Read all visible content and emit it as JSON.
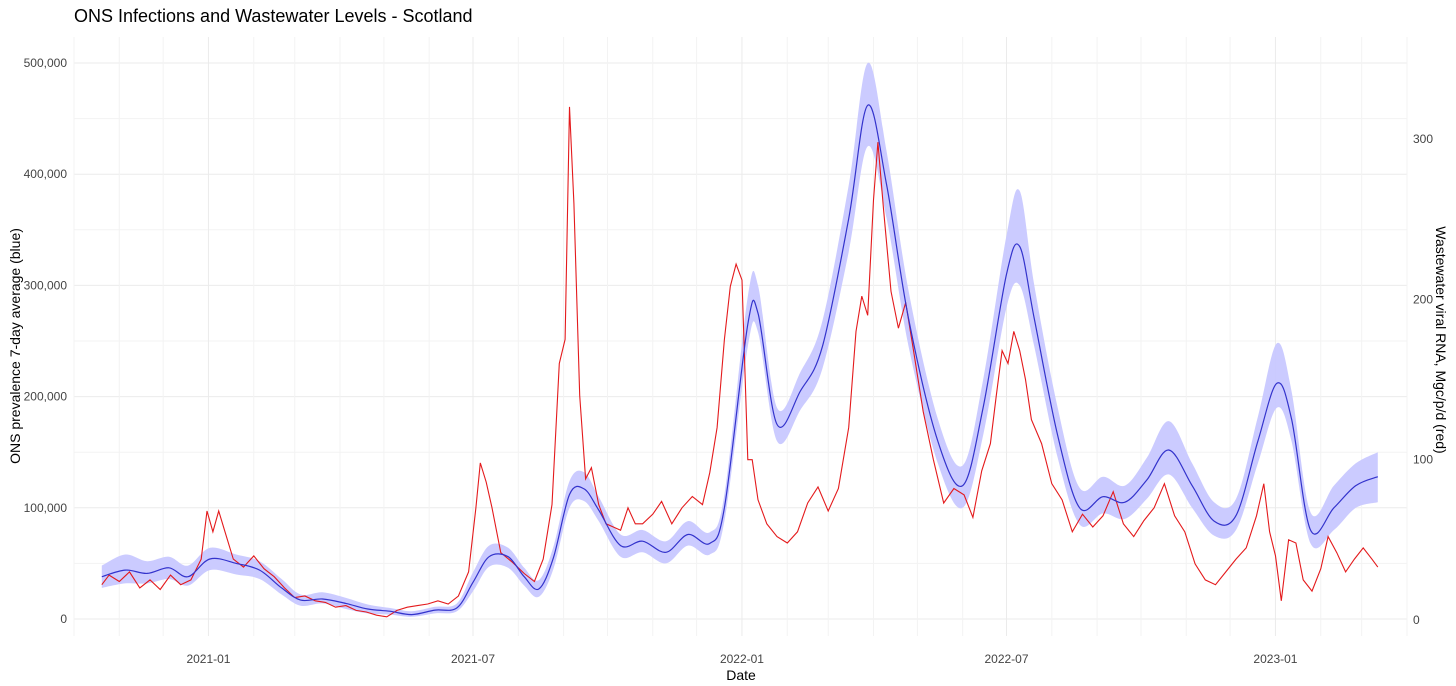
{
  "chart_data": {
    "type": "line",
    "title": "ONS Infections and Wastewater Levels - Scotland",
    "xlabel": "Date",
    "ylabel_left": "ONS prevalence 7-day average (blue)",
    "ylabel_right": "Wastewater viral RNA, Mgc/p/d (red)",
    "xlim": [
      "2020-10-01",
      "2023-04-01"
    ],
    "ylim_left": [
      0,
      500000
    ],
    "ylim_right": [
      0,
      340
    ],
    "x_ticks": [
      {
        "date": "2021-01-01",
        "label": "2021-01"
      },
      {
        "date": "2021-07-01",
        "label": "2021-07"
      },
      {
        "date": "2022-01-01",
        "label": "2022-01"
      },
      {
        "date": "2022-07-01",
        "label": "2022-07"
      },
      {
        "date": "2023-01-01",
        "label": "2023-01"
      }
    ],
    "x_minor_dates": [
      "2020-10-01",
      "2020-11-01",
      "2020-12-01",
      "2021-02-01",
      "2021-03-01",
      "2021-04-01",
      "2021-05-01",
      "2021-06-01",
      "2021-08-01",
      "2021-09-01",
      "2021-10-01",
      "2021-11-01",
      "2021-12-01",
      "2022-02-01",
      "2022-03-01",
      "2022-04-01",
      "2022-05-01",
      "2022-06-01",
      "2022-08-01",
      "2022-09-01",
      "2022-10-01",
      "2022-11-01",
      "2022-12-01",
      "2023-02-01",
      "2023-03-01",
      "2023-04-01"
    ],
    "y_left_ticks": [
      {
        "value": 0,
        "label": "0"
      },
      {
        "value": 100000,
        "label": "100,000"
      },
      {
        "value": 200000,
        "label": "200,000"
      },
      {
        "value": 300000,
        "label": "300,000"
      },
      {
        "value": 400000,
        "label": "400,000"
      },
      {
        "value": 500000,
        "label": "500,000"
      }
    ],
    "y_right_ticks": [
      {
        "value": 0,
        "label": "0"
      },
      {
        "value": 100,
        "label": "100"
      },
      {
        "value": 200,
        "label": "200"
      },
      {
        "value": 300,
        "label": "300"
      }
    ],
    "grid": true,
    "series": [
      {
        "axis": "left",
        "color": "#3333cc",
        "band_color": "#c8c8ff",
        "points": [
          [
            "2020-10-20",
            38000,
            28000,
            48000
          ],
          [
            "2020-11-05",
            44000,
            32000,
            58000
          ],
          [
            "2020-11-20",
            41000,
            32000,
            52000
          ],
          [
            "2020-12-05",
            46000,
            36000,
            56000
          ],
          [
            "2020-12-18",
            38000,
            30000,
            48000
          ],
          [
            "2021-01-02",
            54000,
            44000,
            64000
          ],
          [
            "2021-01-20",
            50000,
            40000,
            58000
          ],
          [
            "2021-02-05",
            44000,
            36000,
            52000
          ],
          [
            "2021-02-20",
            28000,
            22000,
            36000
          ],
          [
            "2021-03-05",
            17000,
            12000,
            22000
          ],
          [
            "2021-03-20",
            18000,
            14000,
            24000
          ],
          [
            "2021-04-05",
            14000,
            9000,
            19000
          ],
          [
            "2021-04-20",
            9000,
            5000,
            13000
          ],
          [
            "2021-05-05",
            7000,
            4000,
            10000
          ],
          [
            "2021-05-20",
            4000,
            2000,
            7000
          ],
          [
            "2021-06-05",
            8000,
            5000,
            11000
          ],
          [
            "2021-06-20",
            10000,
            7000,
            14000
          ],
          [
            "2021-07-01",
            33000,
            25000,
            42000
          ],
          [
            "2021-07-12",
            56000,
            47000,
            66000
          ],
          [
            "2021-07-25",
            56000,
            46000,
            64000
          ],
          [
            "2021-08-05",
            38000,
            30000,
            46000
          ],
          [
            "2021-08-15",
            27000,
            20000,
            35000
          ],
          [
            "2021-08-25",
            55000,
            45000,
            65000
          ],
          [
            "2021-09-05",
            112000,
            100000,
            124000
          ],
          [
            "2021-09-15",
            117000,
            106000,
            132000
          ],
          [
            "2021-09-25",
            98000,
            88000,
            110000
          ],
          [
            "2021-10-10",
            66000,
            56000,
            76000
          ],
          [
            "2021-10-25",
            70000,
            60000,
            80000
          ],
          [
            "2021-11-10",
            60000,
            50000,
            70000
          ],
          [
            "2021-11-25",
            76000,
            66000,
            88000
          ],
          [
            "2021-12-10",
            68000,
            58000,
            78000
          ],
          [
            "2021-12-20",
            100000,
            88000,
            112000
          ],
          [
            "2022-01-05",
            265000,
            245000,
            290000
          ],
          [
            "2022-01-12",
            275000,
            258000,
            300000
          ],
          [
            "2022-01-25",
            175000,
            160000,
            190000
          ],
          [
            "2022-02-10",
            205000,
            188000,
            222000
          ],
          [
            "2022-02-25",
            245000,
            225000,
            268000
          ],
          [
            "2022-03-15",
            360000,
            330000,
            390000
          ],
          [
            "2022-03-28",
            462000,
            425000,
            500000
          ],
          [
            "2022-04-10",
            390000,
            360000,
            420000
          ],
          [
            "2022-04-25",
            270000,
            245000,
            295000
          ],
          [
            "2022-05-15",
            160000,
            140000,
            180000
          ],
          [
            "2022-06-01",
            120000,
            100000,
            138000
          ],
          [
            "2022-06-15",
            190000,
            165000,
            215000
          ],
          [
            "2022-07-01",
            310000,
            280000,
            345000
          ],
          [
            "2022-07-10",
            335000,
            300000,
            385000
          ],
          [
            "2022-07-20",
            270000,
            245000,
            300000
          ],
          [
            "2022-08-05",
            165000,
            145000,
            190000
          ],
          [
            "2022-08-20",
            100000,
            85000,
            118000
          ],
          [
            "2022-09-05",
            110000,
            95000,
            128000
          ],
          [
            "2022-09-20",
            105000,
            90000,
            120000
          ],
          [
            "2022-10-05",
            125000,
            108000,
            145000
          ],
          [
            "2022-10-20",
            152000,
            130000,
            178000
          ],
          [
            "2022-11-05",
            120000,
            100000,
            140000
          ],
          [
            "2022-11-20",
            88000,
            75000,
            105000
          ],
          [
            "2022-12-05",
            93000,
            80000,
            108000
          ],
          [
            "2022-12-20",
            160000,
            140000,
            182000
          ],
          [
            "2023-01-02",
            212000,
            190000,
            248000
          ],
          [
            "2023-01-12",
            180000,
            160000,
            205000
          ],
          [
            "2023-01-25",
            80000,
            68000,
            96000
          ],
          [
            "2023-02-10",
            100000,
            80000,
            120000
          ],
          [
            "2023-02-25",
            120000,
            100000,
            140000
          ],
          [
            "2023-03-12",
            128000,
            105000,
            150000
          ]
        ]
      },
      {
        "axis": "right",
        "color": "#e41a1c",
        "points": [
          [
            "2020-10-20",
            22
          ],
          [
            "2020-10-25",
            28
          ],
          [
            "2020-11-01",
            24
          ],
          [
            "2020-11-08",
            30
          ],
          [
            "2020-11-15",
            20
          ],
          [
            "2020-11-22",
            25
          ],
          [
            "2020-11-29",
            19
          ],
          [
            "2020-12-06",
            28
          ],
          [
            "2020-12-13",
            22
          ],
          [
            "2020-12-20",
            25
          ],
          [
            "2020-12-27",
            38
          ],
          [
            "2020-12-31",
            68
          ],
          [
            "2021-01-04",
            55
          ],
          [
            "2021-01-08",
            68
          ],
          [
            "2021-01-12",
            56
          ],
          [
            "2021-01-18",
            38
          ],
          [
            "2021-01-25",
            33
          ],
          [
            "2021-02-01",
            40
          ],
          [
            "2021-02-08",
            32
          ],
          [
            "2021-02-15",
            27
          ],
          [
            "2021-02-22",
            20
          ],
          [
            "2021-03-01",
            14
          ],
          [
            "2021-03-08",
            15
          ],
          [
            "2021-03-15",
            12
          ],
          [
            "2021-03-22",
            11
          ],
          [
            "2021-03-29",
            8
          ],
          [
            "2021-04-05",
            9
          ],
          [
            "2021-04-12",
            6
          ],
          [
            "2021-04-19",
            5
          ],
          [
            "2021-04-26",
            3
          ],
          [
            "2021-05-03",
            2
          ],
          [
            "2021-05-10",
            6
          ],
          [
            "2021-05-17",
            8
          ],
          [
            "2021-05-24",
            9
          ],
          [
            "2021-05-31",
            10
          ],
          [
            "2021-06-07",
            12
          ],
          [
            "2021-06-14",
            10
          ],
          [
            "2021-06-21",
            15
          ],
          [
            "2021-06-28",
            30
          ],
          [
            "2021-07-03",
            70
          ],
          [
            "2021-07-06",
            98
          ],
          [
            "2021-07-10",
            86
          ],
          [
            "2021-07-14",
            70
          ],
          [
            "2021-07-20",
            42
          ],
          [
            "2021-07-28",
            36
          ],
          [
            "2021-08-05",
            29
          ],
          [
            "2021-08-12",
            24
          ],
          [
            "2021-08-18",
            38
          ],
          [
            "2021-08-24",
            72
          ],
          [
            "2021-08-29",
            160
          ],
          [
            "2021-09-02",
            175
          ],
          [
            "2021-09-05",
            320
          ],
          [
            "2021-09-08",
            260
          ],
          [
            "2021-09-12",
            140
          ],
          [
            "2021-09-16",
            88
          ],
          [
            "2021-09-20",
            95
          ],
          [
            "2021-09-25",
            72
          ],
          [
            "2021-09-30",
            60
          ],
          [
            "2021-10-05",
            58
          ],
          [
            "2021-10-10",
            56
          ],
          [
            "2021-10-15",
            70
          ],
          [
            "2021-10-20",
            60
          ],
          [
            "2021-10-25",
            60
          ],
          [
            "2021-11-01",
            66
          ],
          [
            "2021-11-07",
            74
          ],
          [
            "2021-11-14",
            60
          ],
          [
            "2021-11-21",
            70
          ],
          [
            "2021-11-28",
            77
          ],
          [
            "2021-12-05",
            72
          ],
          [
            "2021-12-10",
            92
          ],
          [
            "2021-12-15",
            120
          ],
          [
            "2021-12-20",
            175
          ],
          [
            "2021-12-24",
            208
          ],
          [
            "2021-12-28",
            222
          ],
          [
            "2022-01-01",
            212
          ],
          [
            "2022-01-05",
            100
          ],
          [
            "2022-01-08",
            100
          ],
          [
            "2022-01-12",
            75
          ],
          [
            "2022-01-18",
            60
          ],
          [
            "2022-01-25",
            52
          ],
          [
            "2022-02-01",
            48
          ],
          [
            "2022-02-08",
            55
          ],
          [
            "2022-02-15",
            73
          ],
          [
            "2022-02-22",
            83
          ],
          [
            "2022-03-01",
            68
          ],
          [
            "2022-03-08",
            82
          ],
          [
            "2022-03-15",
            120
          ],
          [
            "2022-03-20",
            180
          ],
          [
            "2022-03-24",
            202
          ],
          [
            "2022-03-28",
            190
          ],
          [
            "2022-04-01",
            262
          ],
          [
            "2022-04-04",
            298
          ],
          [
            "2022-04-08",
            255
          ],
          [
            "2022-04-13",
            205
          ],
          [
            "2022-04-18",
            182
          ],
          [
            "2022-04-23",
            198
          ],
          [
            "2022-04-28",
            170
          ],
          [
            "2022-05-05",
            130
          ],
          [
            "2022-05-12",
            100
          ],
          [
            "2022-05-19",
            73
          ],
          [
            "2022-05-26",
            82
          ],
          [
            "2022-06-02",
            78
          ],
          [
            "2022-06-08",
            64
          ],
          [
            "2022-06-14",
            93
          ],
          [
            "2022-06-20",
            110
          ],
          [
            "2022-06-24",
            140
          ],
          [
            "2022-06-28",
            168
          ],
          [
            "2022-07-02",
            160
          ],
          [
            "2022-07-06",
            180
          ],
          [
            "2022-07-10",
            168
          ],
          [
            "2022-07-14",
            150
          ],
          [
            "2022-07-18",
            125
          ],
          [
            "2022-07-25",
            110
          ],
          [
            "2022-08-01",
            85
          ],
          [
            "2022-08-08",
            75
          ],
          [
            "2022-08-15",
            55
          ],
          [
            "2022-08-22",
            66
          ],
          [
            "2022-08-29",
            58
          ],
          [
            "2022-09-05",
            65
          ],
          [
            "2022-09-12",
            80
          ],
          [
            "2022-09-19",
            60
          ],
          [
            "2022-09-26",
            52
          ],
          [
            "2022-10-03",
            62
          ],
          [
            "2022-10-10",
            70
          ],
          [
            "2022-10-17",
            85
          ],
          [
            "2022-10-24",
            65
          ],
          [
            "2022-10-31",
            55
          ],
          [
            "2022-11-07",
            35
          ],
          [
            "2022-11-14",
            25
          ],
          [
            "2022-11-21",
            22
          ],
          [
            "2022-11-28",
            30
          ],
          [
            "2022-12-05",
            38
          ],
          [
            "2022-12-12",
            45
          ],
          [
            "2022-12-19",
            65
          ],
          [
            "2022-12-24",
            85
          ],
          [
            "2022-12-28",
            55
          ],
          [
            "2023-01-01",
            40
          ],
          [
            "2023-01-05",
            12
          ],
          [
            "2023-01-10",
            50
          ],
          [
            "2023-01-15",
            48
          ],
          [
            "2023-01-20",
            25
          ],
          [
            "2023-01-26",
            18
          ],
          [
            "2023-02-01",
            32
          ],
          [
            "2023-02-06",
            52
          ],
          [
            "2023-02-12",
            42
          ],
          [
            "2023-02-18",
            30
          ],
          [
            "2023-02-24",
            38
          ],
          [
            "2023-03-02",
            45
          ],
          [
            "2023-03-08",
            38
          ],
          [
            "2023-03-12",
            33
          ]
        ]
      }
    ]
  }
}
